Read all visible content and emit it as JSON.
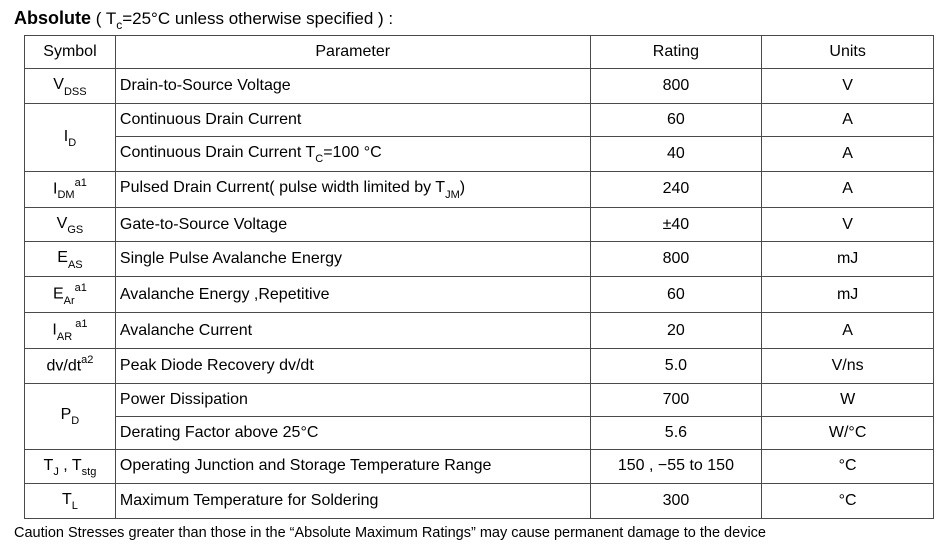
{
  "heading": {
    "title": "Absolute",
    "note_open": " ( T",
    "note_sub": "c",
    "note_rest": "=25°C  unless otherwise specified ) :"
  },
  "table": {
    "headers": {
      "symbol": "Symbol",
      "parameter": "Parameter",
      "rating": "Rating",
      "units": "Units"
    },
    "rows": [
      {
        "sym_parts": [
          [
            "",
            "V"
          ],
          [
            "sub",
            "DSS"
          ]
        ],
        "param_parts": [
          [
            "",
            "Drain-to-Source Voltage"
          ]
        ],
        "rating": "800",
        "units": "V",
        "sym_rowspan": 1
      },
      {
        "sym_parts": [
          [
            "",
            "I"
          ],
          [
            "sub",
            "D"
          ]
        ],
        "param_parts": [
          [
            "",
            "Continuous Drain Current"
          ]
        ],
        "rating": "60",
        "units": "A",
        "sym_rowspan": 2
      },
      {
        "sym_parts": null,
        "param_parts": [
          [
            "",
            "Continuous Drain Current T"
          ],
          [
            "sub",
            "C"
          ],
          [
            "",
            "=100 °C"
          ]
        ],
        "rating": "40",
        "units": "A"
      },
      {
        "sym_parts": [
          [
            "",
            "I"
          ],
          [
            "sub",
            "DM"
          ],
          [
            "sup",
            "a1"
          ]
        ],
        "param_parts": [
          [
            "",
            "Pulsed Drain Current( pulse width limited by T"
          ],
          [
            "sub",
            "JM"
          ],
          [
            "",
            ")"
          ]
        ],
        "rating": "240",
        "units": "A",
        "sym_rowspan": 1
      },
      {
        "sym_parts": [
          [
            "",
            "V"
          ],
          [
            "sub",
            "GS"
          ]
        ],
        "param_parts": [
          [
            "",
            "Gate-to-Source Voltage"
          ]
        ],
        "rating": "±40",
        "units": "V",
        "sym_rowspan": 1
      },
      {
        "sym_parts": [
          [
            "",
            "E"
          ],
          [
            "sub",
            "AS"
          ]
        ],
        "param_parts": [
          [
            "",
            "Single Pulse Avalanche Energy"
          ]
        ],
        "rating": "800",
        "units": "mJ",
        "sym_rowspan": 1
      },
      {
        "sym_parts": [
          [
            "",
            "E"
          ],
          [
            "sub",
            "Ar"
          ],
          [
            "sup",
            "a1"
          ]
        ],
        "param_parts": [
          [
            "",
            "Avalanche Energy ,Repetitive"
          ]
        ],
        "rating": "60",
        "units": "mJ",
        "sym_rowspan": 1
      },
      {
        "sym_parts": [
          [
            "",
            "I"
          ],
          [
            "sub",
            "AR "
          ],
          [
            "sup",
            "a1"
          ]
        ],
        "param_parts": [
          [
            "",
            "Avalanche Current"
          ]
        ],
        "rating": "20",
        "units": "A",
        "sym_rowspan": 1
      },
      {
        "sym_parts": [
          [
            "",
            "dv/dt"
          ],
          [
            "sup",
            "a2"
          ]
        ],
        "param_parts": [
          [
            "",
            "Peak Diode Recovery dv/dt"
          ]
        ],
        "rating": "5.0",
        "units": "V/ns",
        "sym_rowspan": 1
      },
      {
        "sym_parts": [
          [
            "",
            "P"
          ],
          [
            "sub",
            "D"
          ]
        ],
        "param_parts": [
          [
            "",
            "Power Dissipation"
          ]
        ],
        "rating": "700",
        "units": "W",
        "sym_rowspan": 2
      },
      {
        "sym_parts": null,
        "param_parts": [
          [
            "",
            "Derating Factor above 25°C"
          ]
        ],
        "rating": "5.6",
        "units": "W/°C"
      },
      {
        "sym_parts": [
          [
            "",
            "T"
          ],
          [
            "sub",
            "J"
          ],
          [
            "",
            " , T"
          ],
          [
            "sub",
            "stg"
          ]
        ],
        "param_parts": [
          [
            "",
            "Operating Junction and Storage Temperature Range"
          ]
        ],
        "rating": "150 , −55 to 150",
        "units": "°C",
        "sym_rowspan": 1
      },
      {
        "sym_parts": [
          [
            "",
            "T"
          ],
          [
            "sub",
            "L"
          ]
        ],
        "param_parts": [
          [
            "",
            "Maximum Temperature for Soldering"
          ]
        ],
        "rating": "300",
        "units": "°C",
        "sym_rowspan": 1
      }
    ]
  },
  "caution": "Caution Stresses greater than those in the  “Absolute Maximum Ratings”  may cause permanent damage to the device"
}
